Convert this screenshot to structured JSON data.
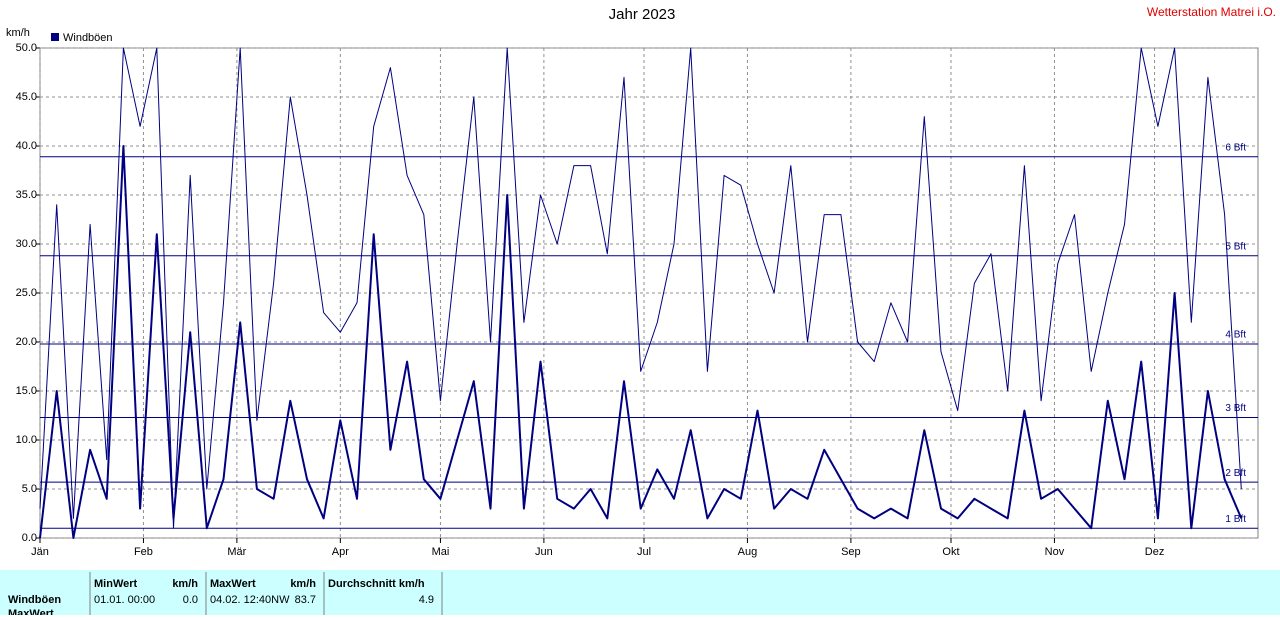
{
  "chart_data": {
    "type": "line",
    "title": "Jahr 2023",
    "station": "Wetterstation Matrei i.O.",
    "y_label": "km/h",
    "xlim": [
      1,
      366
    ],
    "xticks": [
      {
        "value": 1,
        "label": "Jän"
      },
      {
        "value": 32,
        "label": "Feb"
      },
      {
        "value": 60,
        "label": "Mär"
      },
      {
        "value": 91,
        "label": "Apr"
      },
      {
        "value": 121,
        "label": "Mai"
      },
      {
        "value": 152,
        "label": "Jun"
      },
      {
        "value": 182,
        "label": "Jul"
      },
      {
        "value": 213,
        "label": "Aug"
      },
      {
        "value": 244,
        "label": "Sep"
      },
      {
        "value": 274,
        "label": "Okt"
      },
      {
        "value": 305,
        "label": "Nov"
      },
      {
        "value": 335,
        "label": "Dez"
      }
    ],
    "ylim": [
      0,
      50
    ],
    "yticks": [
      {
        "value": 0,
        "label": "0.0"
      },
      {
        "value": 5,
        "label": "5.0"
      },
      {
        "value": 10,
        "label": "10.0"
      },
      {
        "value": 15,
        "label": "15.0"
      },
      {
        "value": 20,
        "label": "20.0"
      },
      {
        "value": 25,
        "label": "25.0"
      },
      {
        "value": 30,
        "label": "30.0"
      },
      {
        "value": 35,
        "label": "35.0"
      },
      {
        "value": 40,
        "label": "40.0"
      },
      {
        "value": 45,
        "label": "45.0"
      },
      {
        "value": 50,
        "label": "50.0"
      }
    ],
    "grid": true,
    "beaufort": [
      {
        "value": 1.0,
        "label": "1 Bft"
      },
      {
        "value": 5.7,
        "label": "2 Bft"
      },
      {
        "value": 12.3,
        "label": "3 Bft"
      },
      {
        "value": 19.8,
        "label": "4 Bft"
      },
      {
        "value": 28.8,
        "label": "5 Bft"
      },
      {
        "value": 38.9,
        "label": "6 Bft"
      }
    ],
    "x": [
      1,
      6,
      11,
      16,
      21,
      26,
      31,
      36,
      41,
      46,
      51,
      56,
      61,
      66,
      71,
      76,
      81,
      86,
      91,
      96,
      101,
      106,
      111,
      116,
      121,
      126,
      131,
      136,
      141,
      146,
      151,
      156,
      161,
      166,
      171,
      176,
      181,
      186,
      191,
      196,
      201,
      206,
      211,
      216,
      221,
      226,
      231,
      236,
      241,
      246,
      251,
      256,
      261,
      266,
      271,
      276,
      281,
      286,
      291,
      296,
      301,
      306,
      311,
      316,
      321,
      326,
      331,
      336,
      341,
      346,
      351,
      356,
      361
    ],
    "series": [
      {
        "name": "Windböen",
        "color": "#000080",
        "width": 1,
        "values": [
          3,
          34,
          2,
          32,
          8,
          50,
          42,
          50,
          1,
          37,
          5,
          24,
          50,
          12,
          26,
          45,
          35,
          23,
          21,
          24,
          42,
          48,
          37,
          33,
          14,
          30,
          45,
          20,
          50,
          22,
          35,
          30,
          38,
          38,
          29,
          47,
          17,
          22,
          30,
          50,
          17,
          37,
          36,
          30,
          25,
          38,
          20,
          33,
          33,
          20,
          18,
          24,
          20,
          43,
          19,
          13,
          26,
          29,
          15,
          38,
          14,
          28,
          33,
          17,
          25,
          32,
          50,
          42,
          50,
          22,
          47,
          33,
          5
        ]
      },
      {
        "color": "#000080",
        "width": 2,
        "values": [
          0,
          15,
          0,
          9,
          4,
          40,
          3,
          31,
          2,
          21,
          1,
          6,
          22,
          5,
          4,
          14,
          6,
          2,
          12,
          4,
          31,
          9,
          18,
          6,
          4,
          10,
          16,
          3,
          35,
          3,
          18,
          4,
          3,
          5,
          2,
          16,
          3,
          7,
          4,
          11,
          2,
          5,
          4,
          13,
          3,
          5,
          4,
          9,
          6,
          3,
          2,
          3,
          2,
          11,
          3,
          2,
          4,
          3,
          2,
          13,
          4,
          5,
          3,
          1,
          14,
          6,
          18,
          2,
          25,
          1,
          15,
          6,
          2
        ]
      }
    ]
  },
  "table": {
    "row_labels": [
      "Windböen",
      "MaxWert"
    ],
    "columns": [
      {
        "header": "MinWert",
        "unit": "km/h",
        "values": [
          "01.01. 00:00",
          "0.0"
        ]
      },
      {
        "header": "MaxWert",
        "unit": "km/h",
        "values": [
          "04.02. 12:40NW",
          "83.7"
        ]
      },
      {
        "header": "Durchschnitt km/h",
        "values": [
          "4.9"
        ]
      }
    ]
  }
}
